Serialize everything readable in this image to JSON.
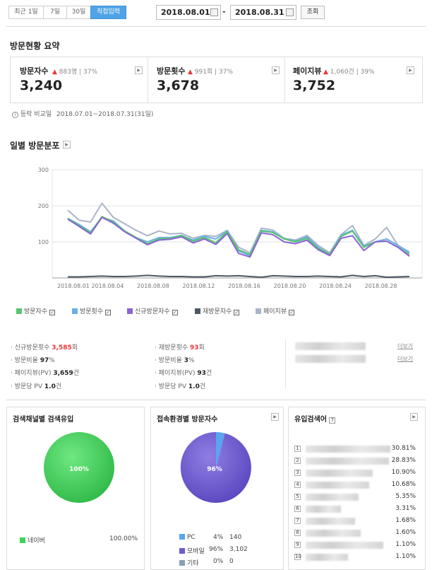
{
  "toolbar": {
    "range_buttons": [
      "최근 1일",
      "7일",
      "30일",
      "직접입력"
    ],
    "start_date": "2018.08.01",
    "separator": "-",
    "end_date": "2018.08.31",
    "search_label": "조회"
  },
  "summary": {
    "title": "방문현황 요약",
    "cards": [
      {
        "label": "방문자수",
        "change": "883명",
        "pct": "37%",
        "value": "3,240"
      },
      {
        "label": "방문횟수",
        "change": "991회",
        "pct": "37%",
        "value": "3,678"
      },
      {
        "label": "페이지뷰",
        "change": "1,060건",
        "pct": "39%",
        "value": "3,752"
      }
    ],
    "compare_label": "등락 비교일",
    "compare_range": "2018.07.01~2018.07.31(31일)"
  },
  "daily": {
    "title": "일별 방문분포"
  },
  "colors": {
    "visitors": "#55c76d",
    "visits": "#6aaee8",
    "new_visits": "#8b63d6",
    "return_visits": "#4d5866",
    "pageviews": "#aab5c9",
    "accent_blue": "#4fa3e6",
    "naver_green": "#3fd25a",
    "pc_blue": "#5aa4f0",
    "mobile_purple": "#6e5bd0",
    "other_gray": "#8aa0b3",
    "up_arrow": "#e33333"
  },
  "chart_data": [
    {
      "type": "line",
      "title": "",
      "xlabel": "",
      "ylabel": "",
      "ylim": [
        0,
        300
      ],
      "yticks": [
        100,
        200,
        300
      ],
      "grid": true,
      "x": [
        "2018.08.01",
        "2018.08.02",
        "2018.08.03",
        "2018.08.04",
        "2018.08.05",
        "2018.08.06",
        "2018.08.07",
        "2018.08.08",
        "2018.08.09",
        "2018.08.10",
        "2018.08.11",
        "2018.08.12",
        "2018.08.13",
        "2018.08.14",
        "2018.08.15",
        "2018.08.16",
        "2018.08.17",
        "2018.08.18",
        "2018.08.19",
        "2018.08.20",
        "2018.08.21",
        "2018.08.22",
        "2018.08.23",
        "2018.08.24",
        "2018.08.25",
        "2018.08.26",
        "2018.08.27",
        "2018.08.28",
        "2018.08.29",
        "2018.08.30",
        "2018.08.31"
      ],
      "xtick_labels": [
        "2018.08.01",
        "2018.08.04",
        "2018.08.08",
        "2018.08.12",
        "2018.08.16",
        "2018.08.20",
        "2018.08.24",
        "2018.08.28"
      ],
      "xtick_index": [
        0,
        3,
        7,
        11,
        15,
        19,
        23,
        27
      ],
      "legend_position": "bottom",
      "series": [
        {
          "name": "방문자수",
          "color_key": "visitors",
          "values": [
            165,
            145,
            125,
            170,
            155,
            130,
            112,
            95,
            108,
            110,
            117,
            102,
            112,
            98,
            128,
            78,
            65,
            130,
            126,
            108,
            100,
            110,
            82,
            65,
            115,
            130,
            85,
            100,
            102,
            85,
            65
          ]
        },
        {
          "name": "방문횟수",
          "color_key": "visits",
          "values": [
            165,
            148,
            128,
            168,
            158,
            130,
            112,
            100,
            112,
            112,
            118,
            105,
            115,
            108,
            130,
            75,
            62,
            132,
            128,
            108,
            102,
            114,
            85,
            66,
            118,
            132,
            88,
            100,
            108,
            90,
            70
          ]
        },
        {
          "name": "신규방문자수",
          "color_key": "new_visits",
          "values": [
            163,
            143,
            122,
            168,
            152,
            128,
            110,
            92,
            105,
            107,
            114,
            97,
            108,
            93,
            123,
            68,
            58,
            125,
            120,
            100,
            95,
            105,
            78,
            62,
            110,
            117,
            76,
            100,
            102,
            85,
            60
          ]
        },
        {
          "name": "재방문자수",
          "color_key": "return_visits",
          "values": [
            3,
            3,
            4,
            5,
            4,
            4,
            5,
            7,
            5,
            4,
            4,
            3,
            3,
            6,
            5,
            6,
            4,
            2,
            6,
            5,
            4,
            4,
            5,
            4,
            3,
            7,
            4,
            6,
            2,
            3,
            4
          ]
        },
        {
          "name": "페이지뷰",
          "color_key": "pageviews",
          "values": [
            188,
            160,
            155,
            207,
            168,
            150,
            132,
            117,
            130,
            122,
            124,
            110,
            118,
            115,
            132,
            85,
            70,
            138,
            133,
            110,
            105,
            118,
            90,
            70,
            120,
            145,
            90,
            108,
            140,
            90,
            72
          ]
        }
      ]
    },
    {
      "type": "pie",
      "title": "검색채널별 검색유입",
      "slices": [
        {
          "name": "네이버",
          "value": 100.0,
          "label": "100%",
          "color_key": "naver_green"
        }
      ]
    },
    {
      "type": "pie",
      "title": "접속환경별 방문자수",
      "slices": [
        {
          "name": "PC",
          "value": 4,
          "color_key": "pc_blue"
        },
        {
          "name": "모바일",
          "value": 96,
          "label": "96%",
          "color_key": "mobile_purple"
        },
        {
          "name": "기타",
          "value": 0,
          "color_key": "other_gray"
        }
      ]
    }
  ],
  "stats": {
    "col1": [
      {
        "label": "신규방문횟수",
        "value": "3,585",
        "unit": "회",
        "red": true
      },
      {
        "label": "방문비율",
        "value": "97",
        "unit": "%",
        "red": false
      },
      {
        "label": "페이지뷰(PV)",
        "value": "3,659",
        "unit": "건",
        "red": false
      },
      {
        "label": "방문당 PV",
        "value": "1.0",
        "unit": "건",
        "red": false
      }
    ],
    "col2": [
      {
        "label": "재방문횟수",
        "value": "93",
        "unit": "회",
        "red": true
      },
      {
        "label": "방문비율",
        "value": "3",
        "unit": "%",
        "red": false
      },
      {
        "label": "페이지뷰(PV)",
        "value": "93",
        "unit": "건",
        "red": false
      },
      {
        "label": "방문당 PV",
        "value": "1.0",
        "unit": "건",
        "red": false
      }
    ],
    "more_label": "더보기"
  },
  "search_channel": {
    "title": "검색채널별 검색유입",
    "legend": [
      {
        "name": "네이버",
        "pct": "100.00%"
      }
    ]
  },
  "device": {
    "title": "접속환경별 방문자수",
    "legend": [
      {
        "name": "PC",
        "pct": "4%",
        "count": "140"
      },
      {
        "name": "모바일",
        "pct": "96%",
        "count": "3,102"
      },
      {
        "name": "기타",
        "pct": "0%",
        "count": "0"
      }
    ]
  },
  "keywords": {
    "title": "유입검색어",
    "help": "?",
    "items": [
      {
        "rank": "1",
        "pct": "30.81%"
      },
      {
        "rank": "2",
        "pct": "28.83%"
      },
      {
        "rank": "3",
        "pct": "10.90%"
      },
      {
        "rank": "4",
        "pct": "10.68%"
      },
      {
        "rank": "5",
        "pct": "5.35%"
      },
      {
        "rank": "6",
        "pct": "3.31%"
      },
      {
        "rank": "7",
        "pct": "1.68%"
      },
      {
        "rank": "8",
        "pct": "1.60%"
      },
      {
        "rank": "9",
        "pct": "1.10%"
      },
      {
        "rank": "10",
        "pct": "1.10%"
      }
    ]
  }
}
